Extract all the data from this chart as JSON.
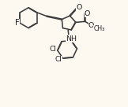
{
  "bg": "#fdf8f0",
  "bc": "#3d3d3d",
  "lw": 1.15,
  "dbo": 0.028,
  "fs": 6.8,
  "xlim": [
    -0.3,
    5.5
  ],
  "ylim": [
    -3.8,
    1.6
  ]
}
